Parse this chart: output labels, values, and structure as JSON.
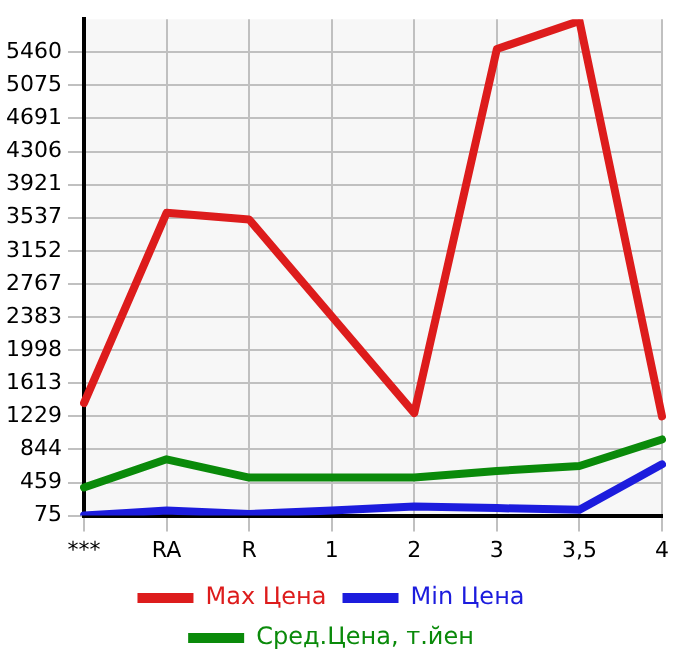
{
  "chart_data": {
    "type": "line",
    "categories": [
      "***",
      "RA",
      "R",
      "1",
      "2",
      "3",
      "3,5",
      "4"
    ],
    "series": [
      {
        "name": "Max Цена",
        "color": "#dd1c1c",
        "values": [
          1383,
          3594,
          3517,
          2392,
          1267,
          5498,
          5825,
          1229
        ]
      },
      {
        "name": "Min Цена",
        "color": "#1c1cdd",
        "values": [
          75,
          133,
          94,
          133,
          181,
          162,
          142,
          671
        ]
      },
      {
        "name": "Сред.Цена, т.йен",
        "color": "#0a8a0a",
        "values": [
          402,
          729,
          517,
          517,
          517,
          594,
          652,
          960
        ]
      }
    ],
    "ylim": [
      75,
      5845
    ],
    "yticks": [
      75,
      459,
      844,
      1229,
      1613,
      1998,
      2383,
      2767,
      3152,
      3537,
      3921,
      4306,
      4691,
      5075,
      5460
    ],
    "grid": true,
    "legend": "bottom",
    "marker": "none",
    "line_style": "solid"
  }
}
